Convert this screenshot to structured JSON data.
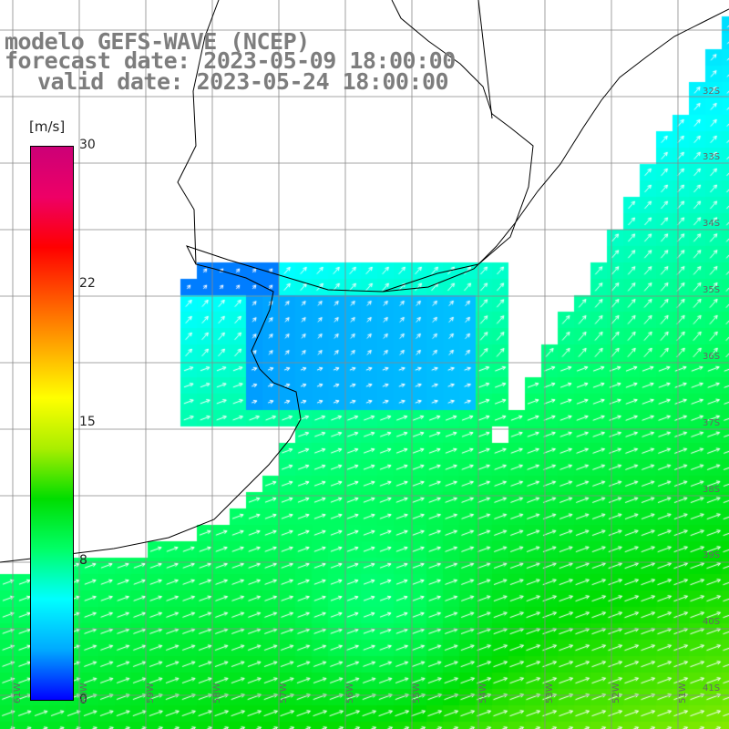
{
  "title": {
    "line1": "modelo GEFS-WAVE (NCEP)",
    "line2": "forecast date: 2023-05-09 18:00:00",
    "line3": "valid date: 2023-05-24 18:00:00"
  },
  "colorbar": {
    "unit": "[m/s]",
    "min": 0,
    "max": 30,
    "ticks": [
      "30",
      "22",
      "15",
      "8",
      "0"
    ],
    "colors": [
      "#0000ff",
      "#00aaff",
      "#00ffff",
      "#00ff66",
      "#00dd00",
      "#aaee00",
      "#ffff00",
      "#ffaa00",
      "#ff5500",
      "#ff0000",
      "#ee0066",
      "#cc0077"
    ]
  },
  "map": {
    "variable": "wind speed and direction",
    "lat_labels": [
      "32S",
      "33S",
      "34S",
      "35S",
      "36S",
      "37S",
      "38S",
      "39S",
      "40S",
      "41S"
    ],
    "lon_labels": [
      "61W",
      "60W",
      "59W",
      "58W",
      "57W",
      "56W",
      "55W",
      "54W",
      "53W",
      "52W",
      "51W"
    ],
    "colors": {
      "land": "#ffffff",
      "coastline": "#000000",
      "grid": "#888888",
      "arrow": "#ffffff"
    }
  }
}
